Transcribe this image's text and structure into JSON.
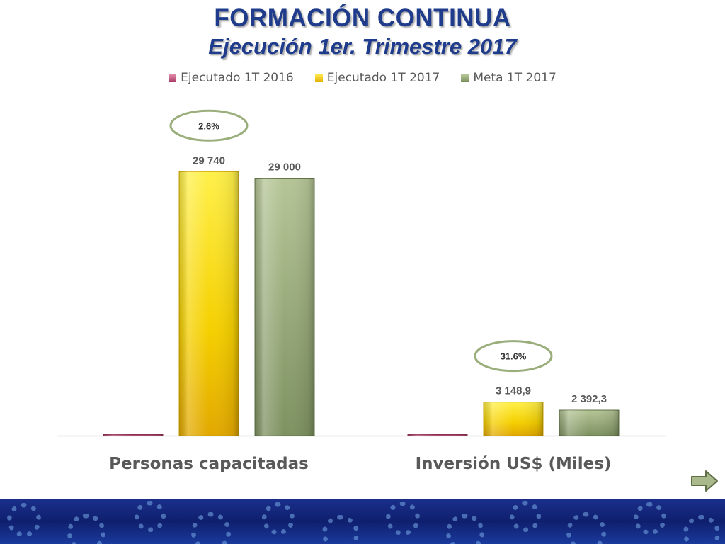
{
  "title": "FORMACIÓN CONTINUA",
  "subtitle": "Ejecución 1er. Trimestre 2017",
  "colors": {
    "title": "#1f3c8c",
    "ejecutado_2016": "#c0507a",
    "ejecutado_2017": "#f5d000",
    "meta_2017": "#9aae7c"
  },
  "chart_data": {
    "type": "bar",
    "categories": [
      "Personas capacitadas",
      "Inversión US$ (Miles)"
    ],
    "series": [
      {
        "name": "Ejecutado 1T 2016",
        "values": [
          0,
          0
        ],
        "labels": [
          "",
          ""
        ]
      },
      {
        "name": "Ejecutado 1T 2017",
        "values": [
          29740,
          3148.9
        ],
        "labels": [
          "29 740",
          "3 148,9"
        ]
      },
      {
        "name": "Meta 1T 2017",
        "values": [
          29000,
          2392.3
        ],
        "labels": [
          "29 000",
          "2 392,3"
        ]
      }
    ],
    "scales": [
      [
        0,
        30000
      ],
      [
        0,
        25000
      ]
    ],
    "annotations": [
      "2.6%",
      "31.6%"
    ],
    "legend_position": "top",
    "grid": false
  },
  "nav": {
    "next_icon": "arrow-right-icon"
  }
}
